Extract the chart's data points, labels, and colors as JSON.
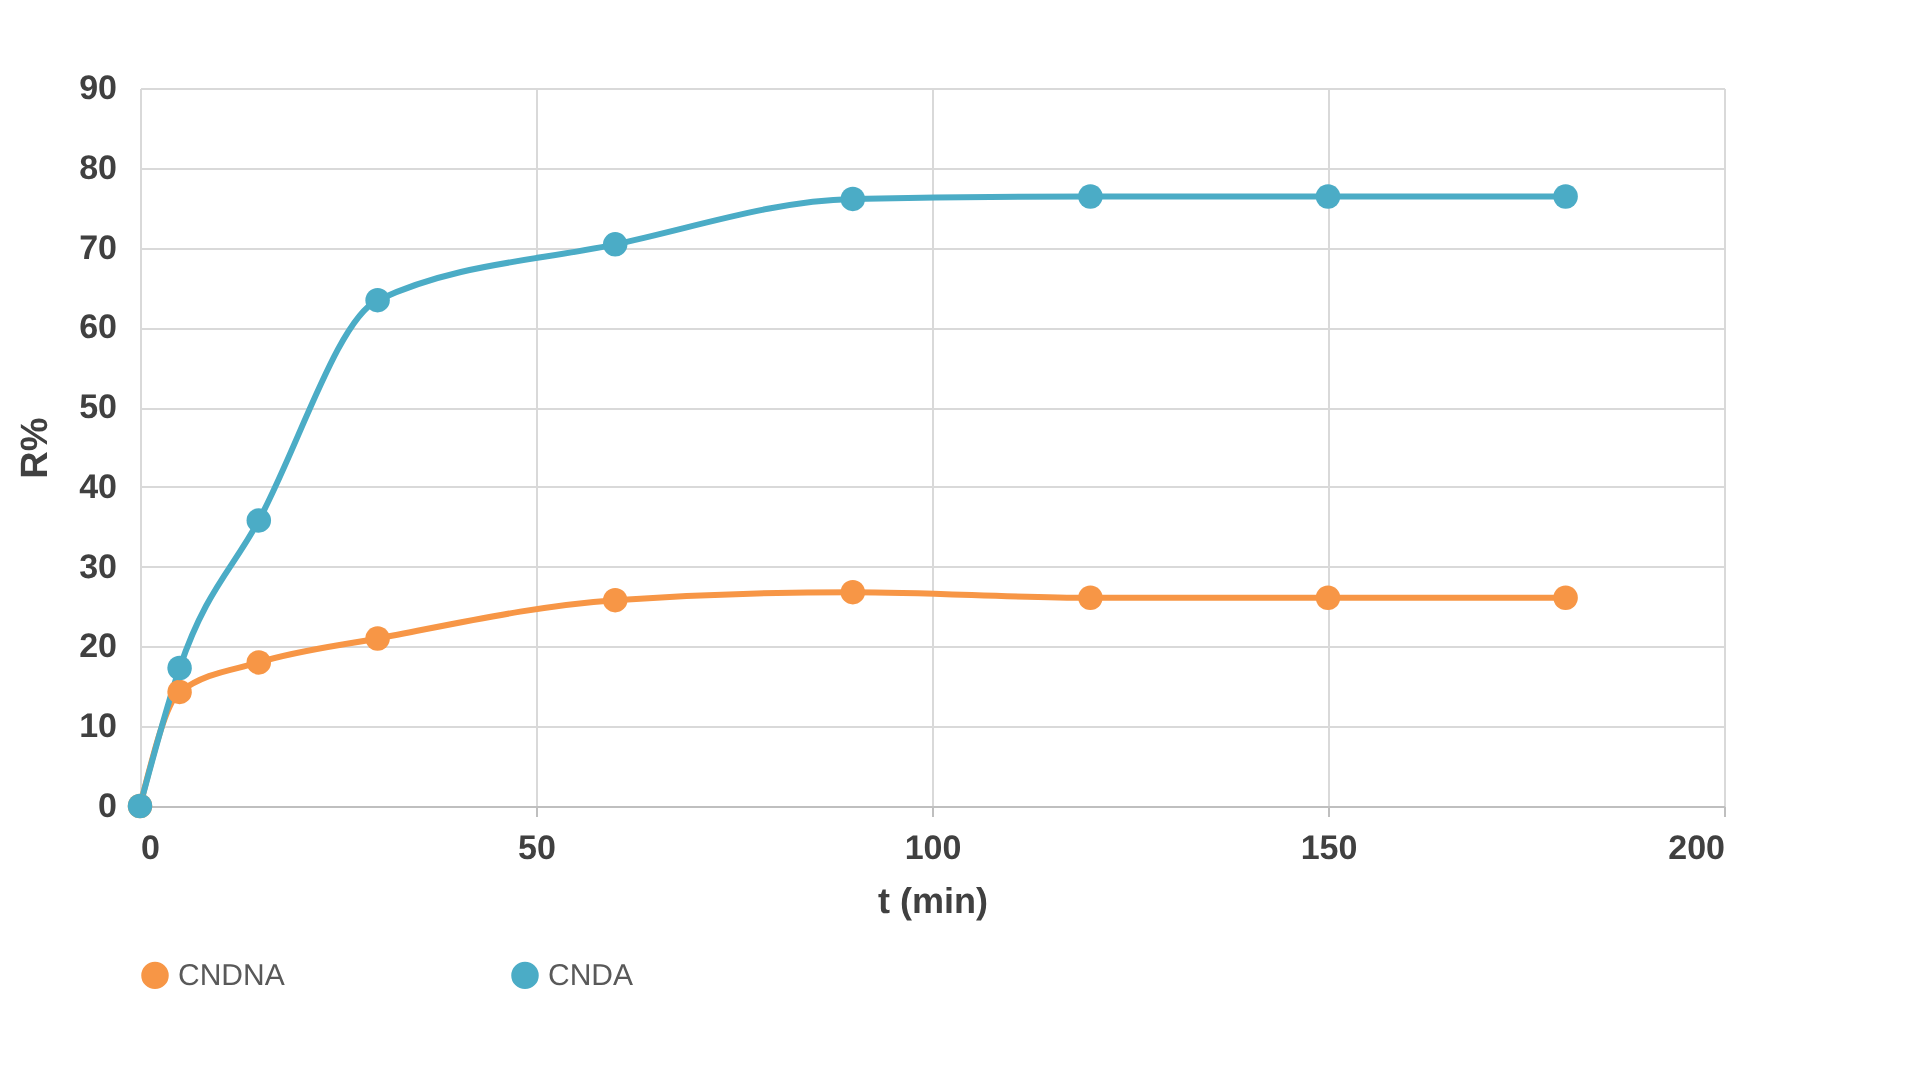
{
  "chart_data": {
    "type": "line",
    "xlabel": "t (min)",
    "ylabel": "R%",
    "x": [
      0,
      5,
      15,
      30,
      60,
      90,
      120,
      150,
      180
    ],
    "series": [
      {
        "name": "CNDNA",
        "color": "#f79646",
        "values": [
          0,
          14.3,
          18.0,
          21.0,
          25.8,
          26.8,
          26.1,
          26.1,
          26.1
        ]
      },
      {
        "name": "CNDA",
        "color": "#4bacc6",
        "values": [
          0,
          17.3,
          35.8,
          63.4,
          70.4,
          76.1,
          76.4,
          76.4,
          76.4
        ]
      }
    ],
    "xlim": [
      0,
      200
    ],
    "xticks": [
      0,
      50,
      100,
      150,
      200
    ],
    "ylim": [
      0,
      90
    ],
    "yticks": [
      0,
      10,
      20,
      30,
      40,
      50,
      60,
      70,
      80,
      90
    ],
    "grid": true,
    "legend": "bottom",
    "marker": "circle",
    "line_style": "solid"
  }
}
